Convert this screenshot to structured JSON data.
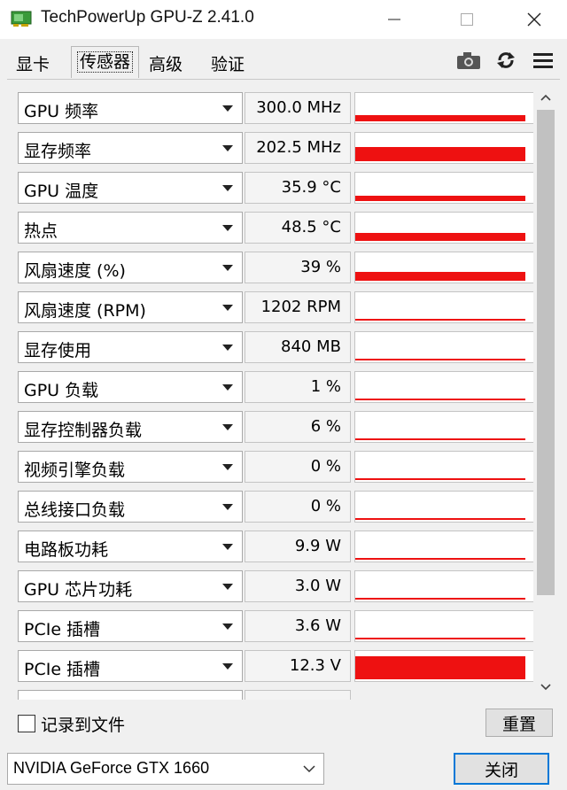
{
  "window": {
    "title": "TechPowerUp GPU-Z 2.41.0"
  },
  "tabs": [
    {
      "label": "显卡"
    },
    {
      "label": "传感器"
    },
    {
      "label": "高级"
    },
    {
      "label": "验证"
    }
  ],
  "active_tab": "传感器",
  "toolbar_icons": [
    "camera-icon",
    "refresh-icon",
    "menu-icon"
  ],
  "sensors": [
    {
      "label": "GPU 频率",
      "value": "300.0 MHz",
      "graph_level": 0.22
    },
    {
      "label": "显存频率",
      "value": "202.5 MHz",
      "graph_level": 0.5
    },
    {
      "label": "GPU 温度",
      "value": "35.9 °C",
      "graph_level": 0.18
    },
    {
      "label": "热点",
      "value": "48.5 °C",
      "graph_level": 0.28
    },
    {
      "label": "风扇速度 (%)",
      "value": "39 %",
      "graph_level": 0.3
    },
    {
      "label": "风扇速度 (RPM)",
      "value": "1202 RPM",
      "graph_level": 0.05
    },
    {
      "label": "显存使用",
      "value": "840 MB",
      "graph_level": 0.06
    },
    {
      "label": "GPU 负载",
      "value": "1 %",
      "graph_level": 0.0
    },
    {
      "label": "显存控制器负载",
      "value": "6 %",
      "graph_level": 0.04
    },
    {
      "label": "视频引擎负载",
      "value": "0 %",
      "graph_level": 0.0
    },
    {
      "label": "总线接口负载",
      "value": "0 %",
      "graph_level": 0.0
    },
    {
      "label": "电路板功耗",
      "value": "9.9 W",
      "graph_level": 0.04
    },
    {
      "label": "GPU 芯片功耗",
      "value": "3.0 W",
      "graph_level": 0.0
    },
    {
      "label": "PCIe 插槽",
      "value": "3.6 W",
      "graph_level": 0.05
    },
    {
      "label": "PCIe 插槽",
      "value": "12.3 V",
      "graph_level": 0.8
    }
  ],
  "log_to_file": {
    "label": "记录到文件",
    "checked": false
  },
  "reset_button": {
    "label": "重置"
  },
  "gpu_select": {
    "value": "NVIDIA GeForce GTX 1660"
  },
  "close_button": {
    "label": "关闭"
  },
  "colors": {
    "graph": "#ee1111",
    "focus_border": "#0078d7"
  }
}
